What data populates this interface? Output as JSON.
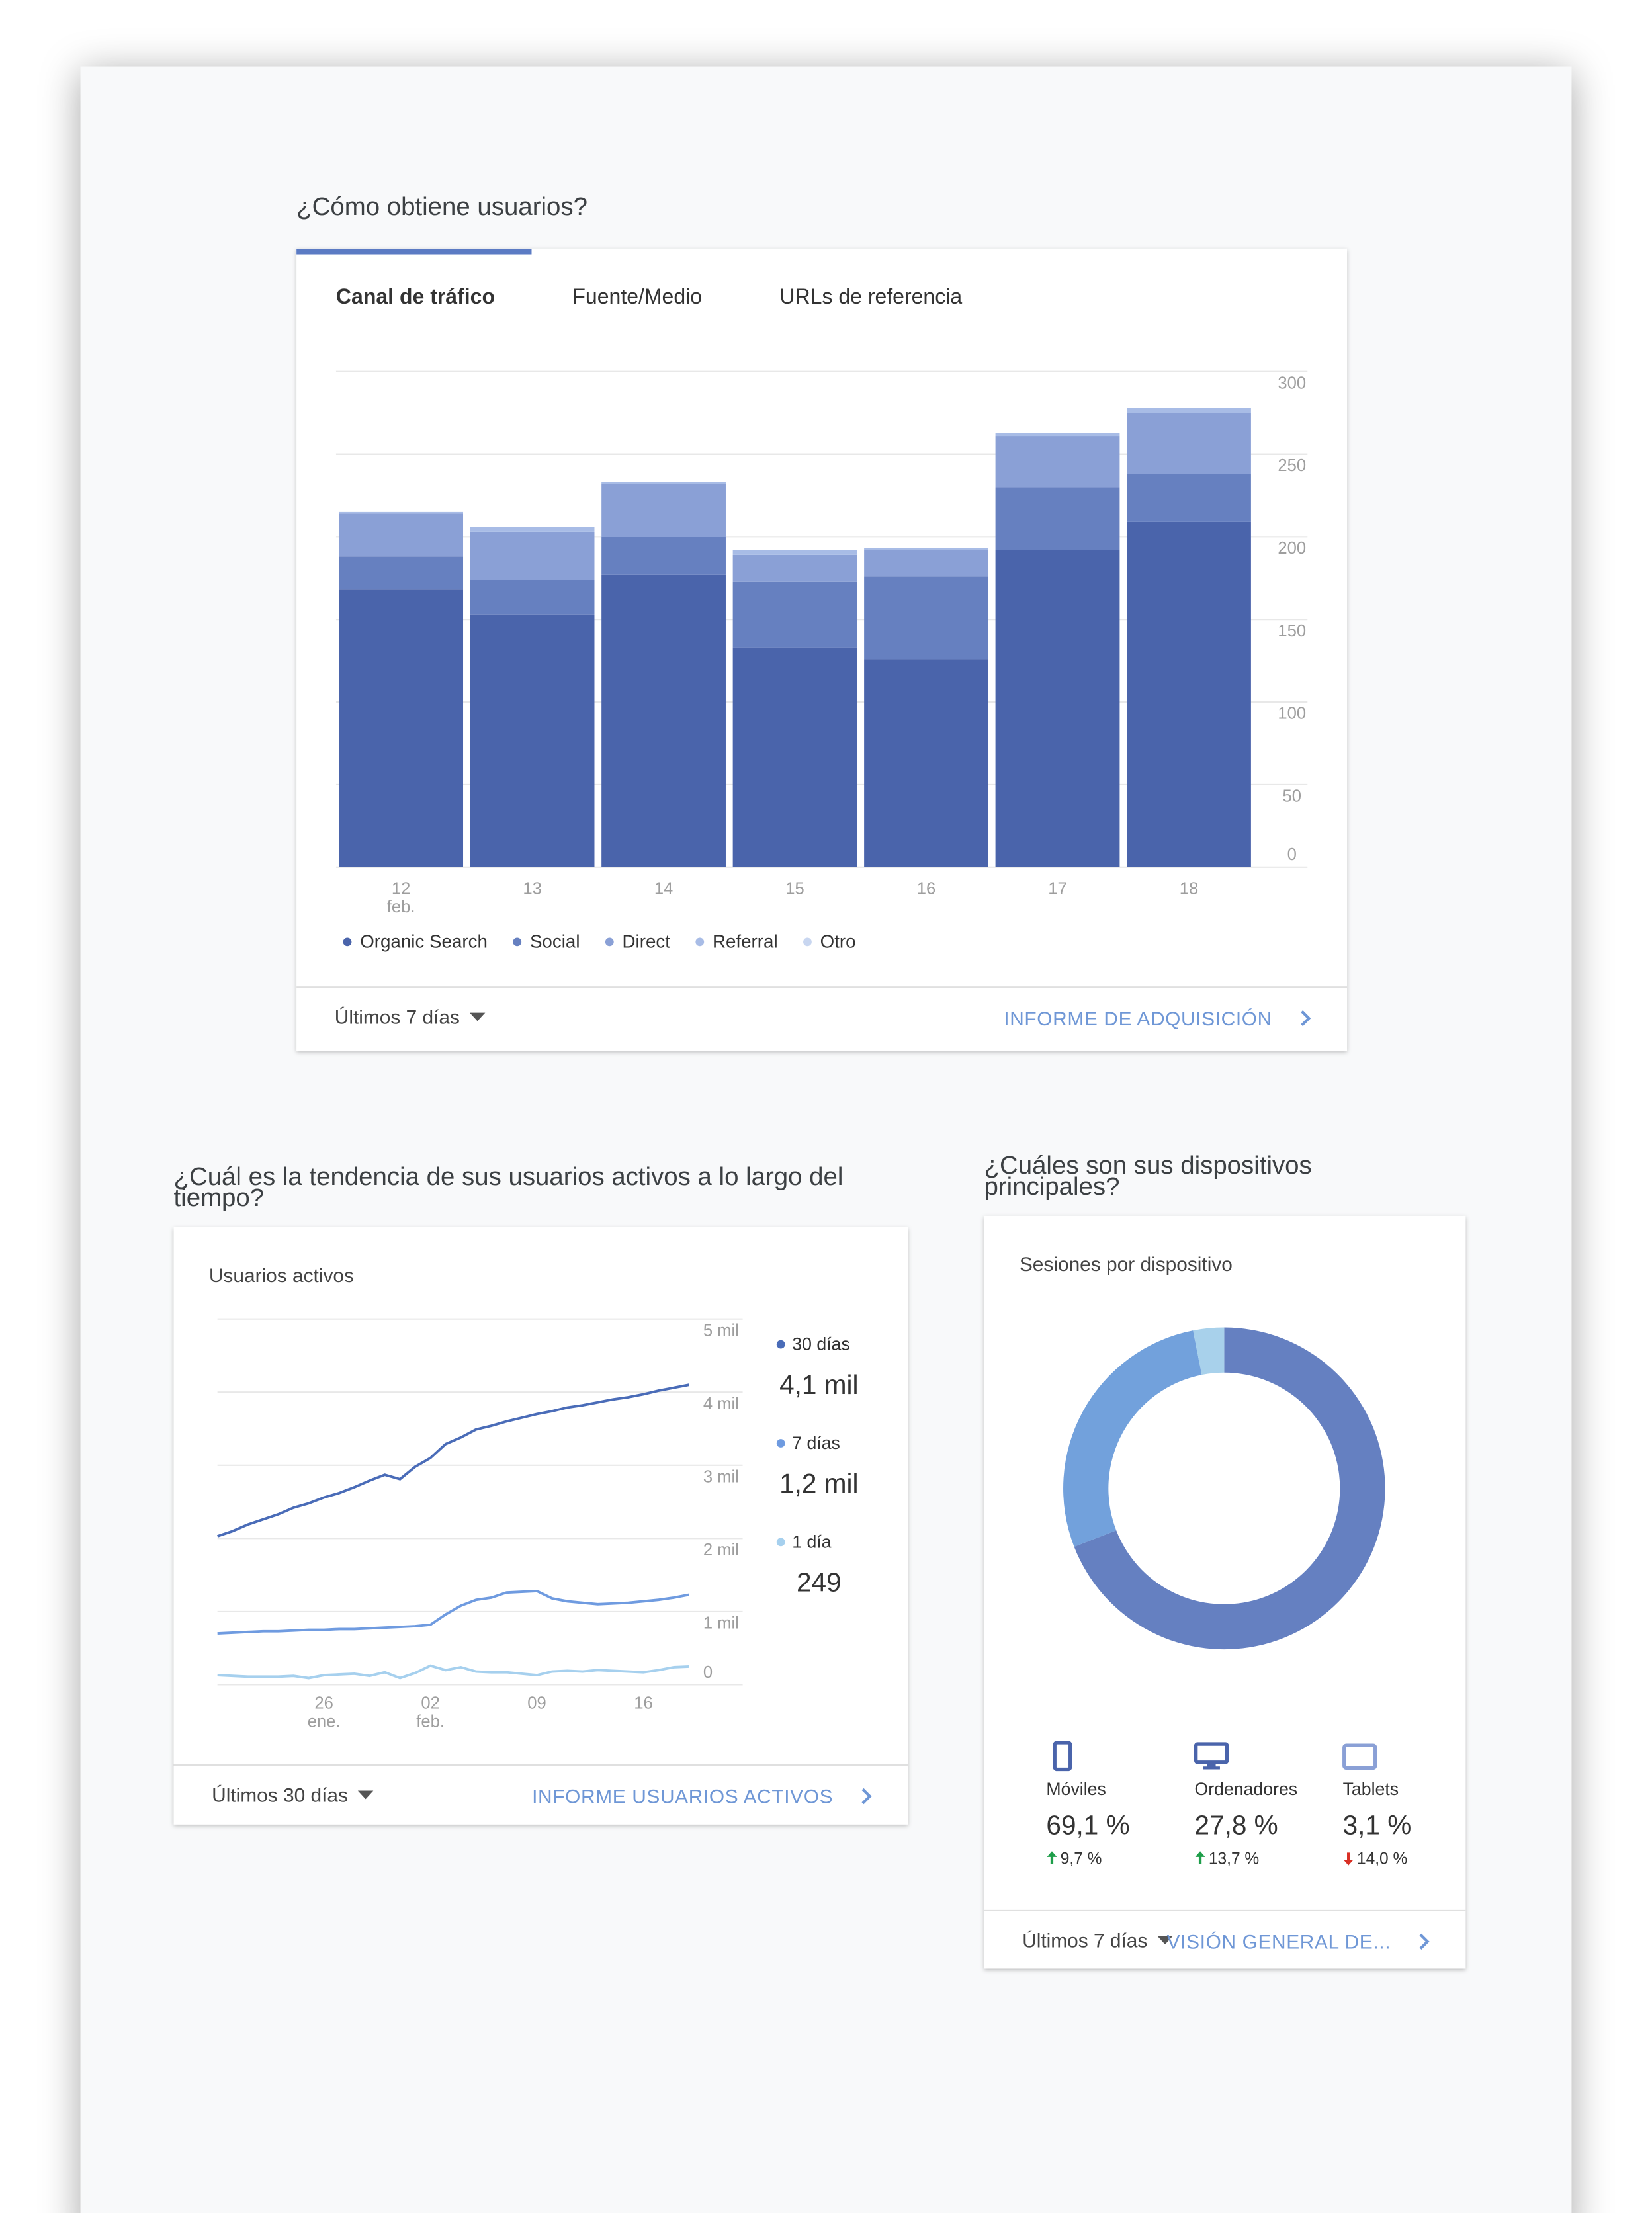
{
  "chart_data": [
    {
      "type": "bar",
      "stacked": true,
      "title": "¿Cómo obtiene usuarios?",
      "tabs": [
        "Canal de tráfico",
        "Fuente/Medio",
        "URLs de referencia"
      ],
      "active_tab": 0,
      "categories": [
        "12\nfeb.",
        "13",
        "14",
        "15",
        "16",
        "17",
        "18"
      ],
      "series": [
        {
          "name": "Organic Search",
          "color": "#4a64ab",
          "values": [
            168,
            153,
            177,
            133,
            126,
            192,
            209
          ]
        },
        {
          "name": "Social",
          "color": "#6680c0",
          "values": [
            20,
            21,
            23,
            40,
            50,
            38,
            29
          ]
        },
        {
          "name": "Direct",
          "color": "#8aa0d6",
          "values": [
            26,
            29,
            32,
            16,
            16,
            31,
            37
          ]
        },
        {
          "name": "Referral",
          "color": "#a8bce6",
          "values": [
            1,
            3,
            1,
            3,
            1,
            2,
            3
          ]
        },
        {
          "name": "Otro",
          "color": "#c8d6f0",
          "values": [
            0,
            0,
            0,
            0,
            0,
            0,
            0
          ]
        }
      ],
      "ylim": [
        0,
        300
      ],
      "yticks": [
        0,
        50,
        100,
        150,
        200,
        250,
        300
      ],
      "grid": true,
      "legend": "bottom",
      "period_label": "Últimos 7 días",
      "link": "INFORME DE ADQUISICIÓN"
    },
    {
      "type": "line",
      "title": "¿Cuál es la tendencia de sus usuarios activos a lo largo del tiempo?",
      "subtitle": "Usuarios activos",
      "x": [
        "19 ene.",
        "20 ene.",
        "21 ene.",
        "22 ene.",
        "23 ene.",
        "24 ene.",
        "25 ene.",
        "26 ene.",
        "27 ene.",
        "28 ene.",
        "29 ene.",
        "30 ene.",
        "31 ene.",
        "01 feb.",
        "02 feb.",
        "03 feb.",
        "04 feb.",
        "05 feb.",
        "06 feb.",
        "07 feb.",
        "08 feb.",
        "09 feb.",
        "10 feb.",
        "11 feb.",
        "12 feb.",
        "13 feb.",
        "14 feb.",
        "15 feb.",
        "16 feb.",
        "17 feb.",
        "18 feb.",
        "19 feb."
      ],
      "xticks": [
        {
          "value": "26 ene.",
          "label": "26\nene."
        },
        {
          "value": "02 feb.",
          "label": "02\nfeb."
        },
        {
          "value": "09 feb.",
          "label": "09"
        },
        {
          "value": "16 feb.",
          "label": "16"
        }
      ],
      "series": [
        {
          "name": "30 días",
          "color": "#4a6cb8",
          "summary_label": "4,1 mil",
          "values": [
            2030,
            2100,
            2190,
            2260,
            2330,
            2420,
            2480,
            2560,
            2620,
            2700,
            2790,
            2870,
            2810,
            2980,
            3100,
            3290,
            3380,
            3490,
            3540,
            3600,
            3650,
            3700,
            3740,
            3790,
            3820,
            3860,
            3900,
            3930,
            3970,
            4020,
            4060,
            4100
          ]
        },
        {
          "name": "7 días",
          "color": "#6f9be0",
          "summary_label": "1,2 mil",
          "values": [
            700,
            710,
            720,
            730,
            730,
            740,
            750,
            750,
            760,
            760,
            770,
            780,
            790,
            800,
            820,
            960,
            1080,
            1160,
            1190,
            1260,
            1270,
            1280,
            1180,
            1140,
            1120,
            1100,
            1110,
            1120,
            1140,
            1160,
            1190,
            1230
          ]
        },
        {
          "name": "1 día",
          "color": "#a6d0ee",
          "summary_label": "249",
          "values": [
            130,
            120,
            110,
            110,
            110,
            120,
            90,
            130,
            140,
            150,
            120,
            170,
            90,
            160,
            260,
            200,
            240,
            180,
            170,
            170,
            150,
            130,
            180,
            190,
            180,
            200,
            190,
            180,
            170,
            200,
            240,
            249
          ]
        }
      ],
      "ylim": [
        0,
        5000
      ],
      "yticks": [
        0,
        {
          "value": 1000,
          "label": "1 mil"
        },
        {
          "value": 2000,
          "label": "2 mil"
        },
        {
          "value": 3000,
          "label": "3 mil"
        },
        {
          "value": 4000,
          "label": "4 mil"
        },
        {
          "value": 5000,
          "label": "5 mil"
        }
      ],
      "grid": true,
      "legend": "right",
      "period_label": "Últimos 30 días",
      "link": "INFORME USUARIOS ACTIVOS"
    },
    {
      "type": "pie",
      "donut": true,
      "title": "¿Cuáles son sus dispositivos principales?",
      "subtitle": "Sesiones por dispositivo",
      "categories": [
        "Móviles",
        "Ordenadores",
        "Tablets"
      ],
      "values": [
        69.1,
        27.8,
        3.1
      ],
      "value_labels": [
        "69,1 %",
        "27,8 %",
        "3,1 %"
      ],
      "colors": [
        "#6580c1",
        "#72a1dc",
        "#a8d1eb"
      ],
      "changes": [
        9.7,
        13.7,
        -14.0
      ],
      "change_labels": [
        "9,7 %",
        "13,7 %",
        "14,0 %"
      ],
      "period_label": "Últimos 7 días",
      "link": "VISIÓN GENERAL DE..."
    }
  ]
}
